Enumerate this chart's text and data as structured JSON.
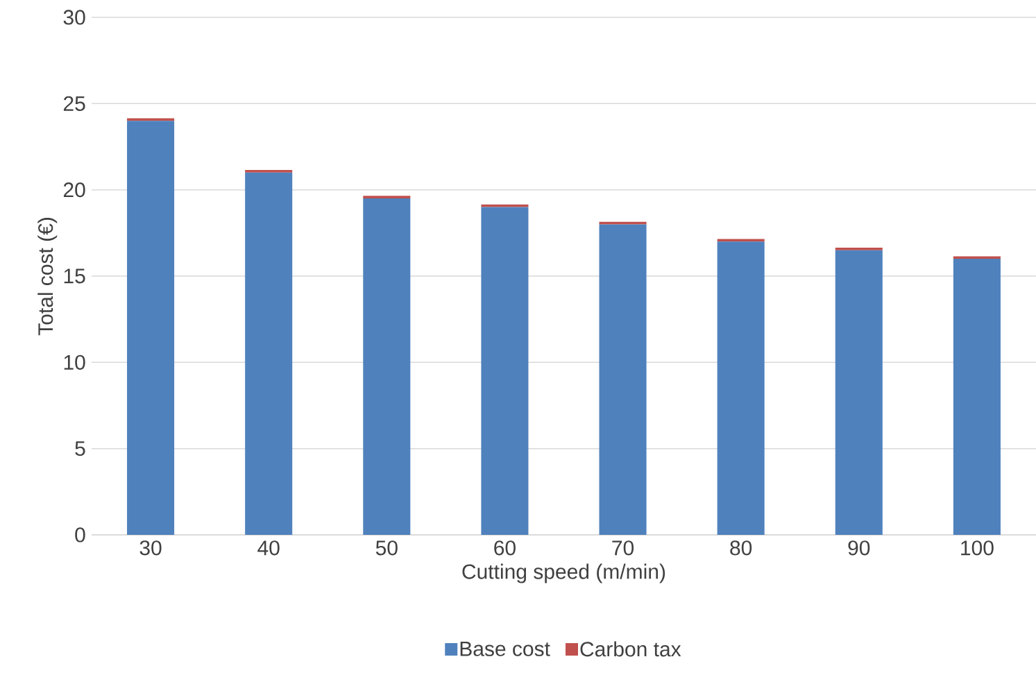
{
  "chart_data": {
    "type": "bar",
    "stacked": true,
    "xlabel": "Cutting speed (m/min)",
    "ylabel": "Total cost (€)",
    "categories": [
      "30",
      "40",
      "50",
      "60",
      "70",
      "80",
      "90",
      "100"
    ],
    "series": [
      {
        "name": "Base cost",
        "color": "#4f81bd",
        "values": [
          24.0,
          21.0,
          19.5,
          19.0,
          18.0,
          17.0,
          16.5,
          16.0
        ]
      },
      {
        "name": "Carbon tax",
        "color": "#c0504d",
        "values": [
          0.15,
          0.15,
          0.15,
          0.15,
          0.15,
          0.15,
          0.15,
          0.15
        ]
      }
    ],
    "ylim": [
      0,
      30
    ],
    "yticks": [
      0,
      5,
      10,
      15,
      20,
      25,
      30
    ],
    "grid": "y",
    "legend": "bottom"
  }
}
